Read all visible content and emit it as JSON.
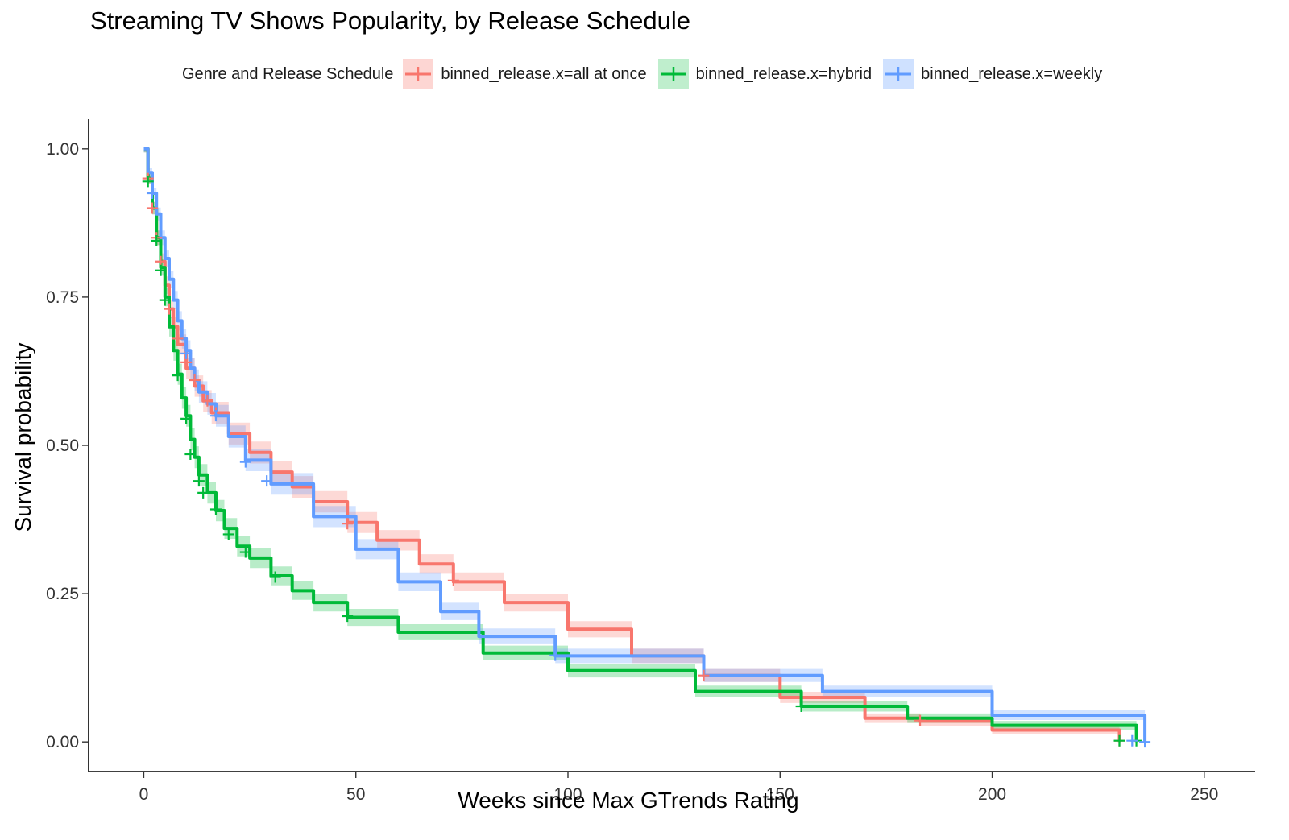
{
  "chart_data": {
    "type": "line",
    "title": "Streaming TV Shows Popularity, by Release Schedule",
    "xlabel": "Weeks since Max GTrends Rating",
    "ylabel": "Survival probability",
    "xlim": [
      -13,
      262
    ],
    "ylim": [
      -0.05,
      1.05
    ],
    "x_ticks": [
      0,
      50,
      100,
      150,
      200,
      250
    ],
    "x_tick_labels": [
      "0",
      "50",
      "100",
      "150",
      "200",
      "250"
    ],
    "y_ticks": [
      0,
      0.25,
      0.5,
      0.75,
      1.0
    ],
    "y_tick_labels": [
      "0.00",
      "0.25",
      "0.50",
      "0.75",
      "1.00"
    ],
    "legend_title": "Genre and Release Schedule",
    "legend_position": "top",
    "series": [
      {
        "name": "binned_release.x=all at once",
        "color": "#F8766D",
        "points": [
          [
            0,
            1.0
          ],
          [
            1,
            0.95
          ],
          [
            2,
            0.9
          ],
          [
            3,
            0.85
          ],
          [
            4,
            0.81
          ],
          [
            5,
            0.77
          ],
          [
            6,
            0.73
          ],
          [
            7,
            0.7
          ],
          [
            8,
            0.67
          ],
          [
            10,
            0.63
          ],
          [
            12,
            0.6
          ],
          [
            14,
            0.575
          ],
          [
            16,
            0.555
          ],
          [
            20,
            0.52
          ],
          [
            25,
            0.488
          ],
          [
            30,
            0.455
          ],
          [
            35,
            0.43
          ],
          [
            40,
            0.405
          ],
          [
            48,
            0.37
          ],
          [
            55,
            0.34
          ],
          [
            65,
            0.3
          ],
          [
            73,
            0.27
          ],
          [
            85,
            0.235
          ],
          [
            100,
            0.19
          ],
          [
            115,
            0.145
          ],
          [
            132,
            0.112
          ],
          [
            150,
            0.075
          ],
          [
            170,
            0.04
          ],
          [
            183,
            0.035
          ],
          [
            200,
            0.02
          ],
          [
            230,
            0.0
          ]
        ],
        "censor_marks": [
          [
            1,
            0.95
          ],
          [
            2,
            0.9
          ],
          [
            3,
            0.85
          ],
          [
            4,
            0.81
          ],
          [
            6,
            0.73
          ],
          [
            8,
            0.68
          ],
          [
            10,
            0.64
          ],
          [
            12,
            0.61
          ],
          [
            15,
            0.575
          ],
          [
            17,
            0.555
          ],
          [
            48,
            0.368
          ],
          [
            73,
            0.272
          ],
          [
            132,
            0.112
          ],
          [
            183,
            0.036
          ],
          [
            230,
            0.002
          ]
        ]
      },
      {
        "name": "binned_release.x=hybrid",
        "color": "#00BA38",
        "points": [
          [
            0,
            1.0
          ],
          [
            1,
            0.95
          ],
          [
            2,
            0.9
          ],
          [
            3,
            0.85
          ],
          [
            4,
            0.8
          ],
          [
            5,
            0.75
          ],
          [
            6,
            0.7
          ],
          [
            7,
            0.66
          ],
          [
            8,
            0.62
          ],
          [
            9,
            0.58
          ],
          [
            10,
            0.55
          ],
          [
            11,
            0.51
          ],
          [
            12,
            0.48
          ],
          [
            13,
            0.45
          ],
          [
            15,
            0.42
          ],
          [
            17,
            0.39
          ],
          [
            19,
            0.36
          ],
          [
            22,
            0.33
          ],
          [
            25,
            0.31
          ],
          [
            30,
            0.28
          ],
          [
            35,
            0.255
          ],
          [
            40,
            0.235
          ],
          [
            48,
            0.21
          ],
          [
            60,
            0.185
          ],
          [
            80,
            0.15
          ],
          [
            100,
            0.12
          ],
          [
            130,
            0.085
          ],
          [
            155,
            0.06
          ],
          [
            180,
            0.04
          ],
          [
            200,
            0.028
          ],
          [
            234,
            0.0
          ]
        ],
        "censor_marks": [
          [
            1,
            0.945
          ],
          [
            3,
            0.845
          ],
          [
            4,
            0.795
          ],
          [
            5,
            0.745
          ],
          [
            8,
            0.618
          ],
          [
            10,
            0.545
          ],
          [
            11,
            0.485
          ],
          [
            13,
            0.44
          ],
          [
            14,
            0.42
          ],
          [
            17,
            0.392
          ],
          [
            20,
            0.35
          ],
          [
            24,
            0.32
          ],
          [
            31,
            0.278
          ],
          [
            48,
            0.212
          ],
          [
            155,
            0.06
          ],
          [
            230,
            0.002
          ],
          [
            234,
            0.002
          ]
        ]
      },
      {
        "name": "binned_release.x=weekly",
        "color": "#619CFF",
        "points": [
          [
            0,
            1.0
          ],
          [
            1,
            0.96
          ],
          [
            2,
            0.925
          ],
          [
            3,
            0.89
          ],
          [
            4,
            0.85
          ],
          [
            5,
            0.815
          ],
          [
            6,
            0.78
          ],
          [
            7,
            0.745
          ],
          [
            8,
            0.71
          ],
          [
            9,
            0.68
          ],
          [
            10,
            0.66
          ],
          [
            11,
            0.63
          ],
          [
            12,
            0.61
          ],
          [
            13,
            0.59
          ],
          [
            15,
            0.57
          ],
          [
            17,
            0.55
          ],
          [
            20,
            0.515
          ],
          [
            24,
            0.475
          ],
          [
            30,
            0.435
          ],
          [
            40,
            0.38
          ],
          [
            50,
            0.325
          ],
          [
            60,
            0.27
          ],
          [
            70,
            0.22
          ],
          [
            79,
            0.178
          ],
          [
            97,
            0.145
          ],
          [
            132,
            0.112
          ],
          [
            160,
            0.085
          ],
          [
            200,
            0.045
          ],
          [
            236,
            0.0
          ]
        ],
        "censor_marks": [
          [
            2,
            0.925
          ],
          [
            10,
            0.655
          ],
          [
            17,
            0.55
          ],
          [
            24,
            0.472
          ],
          [
            29,
            0.44
          ],
          [
            97,
            0.146
          ],
          [
            233,
            0.002
          ],
          [
            236,
            0.0
          ]
        ]
      }
    ]
  }
}
